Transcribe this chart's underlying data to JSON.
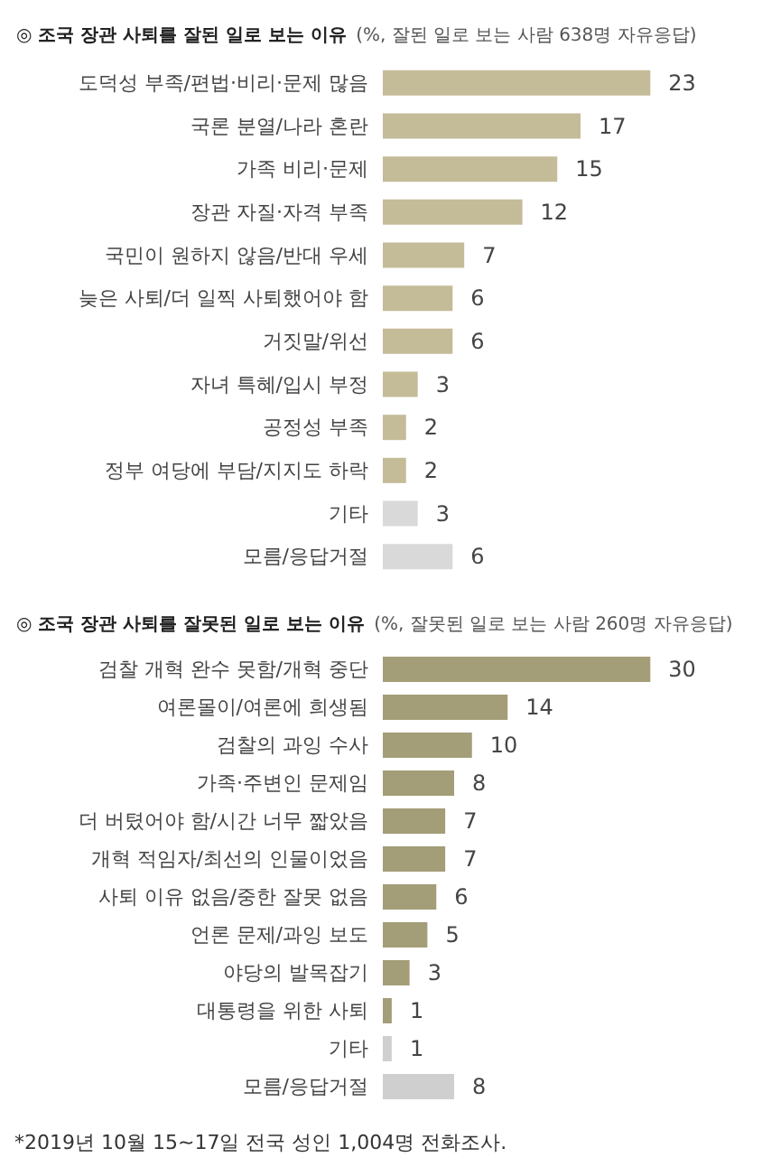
{
  "chart_data": [
    {
      "type": "bar",
      "orientation": "horizontal",
      "title": "◎ 조국 장관 사퇴를 잘된 일로 보는 이유",
      "subtitle": "(%, 잘된 일로 보는 사람 638명 자유응답)",
      "categories": [
        "도덕성 부족/편법·비리·문제 많음",
        "국론 분열/나라 혼란",
        "가족 비리·문제",
        "장관 자질·자격 부족",
        "국민이 원하지 않음/반대 우세",
        "늦은 사퇴/더 일찍 사퇴했어야 함",
        "거짓말/위선",
        "자녀 특혜/입시 부정",
        "공정성 부족",
        "정부 여당에 부담/지지도 하락",
        "기타",
        "모름/응답거절"
      ],
      "values": [
        23,
        17,
        15,
        12,
        7,
        6,
        6,
        3,
        2,
        2,
        3,
        6
      ],
      "colors": [
        "#c4bb98",
        "#c4bb98",
        "#c4bb98",
        "#c4bb98",
        "#c4bb98",
        "#c4bb98",
        "#c4bb98",
        "#c4bb98",
        "#c4bb98",
        "#c4bb98",
        "#d9d9d9",
        "#d9d9d9"
      ],
      "data_labels": true
    },
    {
      "type": "bar",
      "orientation": "horizontal",
      "title": "◎ 조국 장관 사퇴를 잘못된 일로 보는 이유",
      "subtitle": "(%, 잘못된 일로 보는 사람 260명 자유응답)",
      "categories": [
        "검찰 개혁 완수 못함/개혁 중단",
        "여론몰이/여론에 희생됨",
        "검찰의 과잉 수사",
        "가족·주변인 문제임",
        "더 버텼어야 함/시간 너무 짧았음",
        "개혁 적임자/최선의 인물이었음",
        "사퇴 이유 없음/중한 잘못 없음",
        "언론 문제/과잉 보도",
        "야당의 발목잡기",
        "대통령을 위한 사퇴",
        "기타",
        "모름/응답거절"
      ],
      "values": [
        30,
        14,
        10,
        8,
        7,
        7,
        6,
        5,
        3,
        1,
        1,
        8
      ],
      "colors": [
        "#a39d78",
        "#a39d78",
        "#a39d78",
        "#a39d78",
        "#a39d78",
        "#a39d78",
        "#a39d78",
        "#a39d78",
        "#a39d78",
        "#a39d78",
        "#cfcfcf",
        "#cfcfcf"
      ],
      "data_labels": true,
      "annotations": [
        "*2019년 10월 15~17일 전국 성인 1,004명 전화조사."
      ]
    }
  ]
}
